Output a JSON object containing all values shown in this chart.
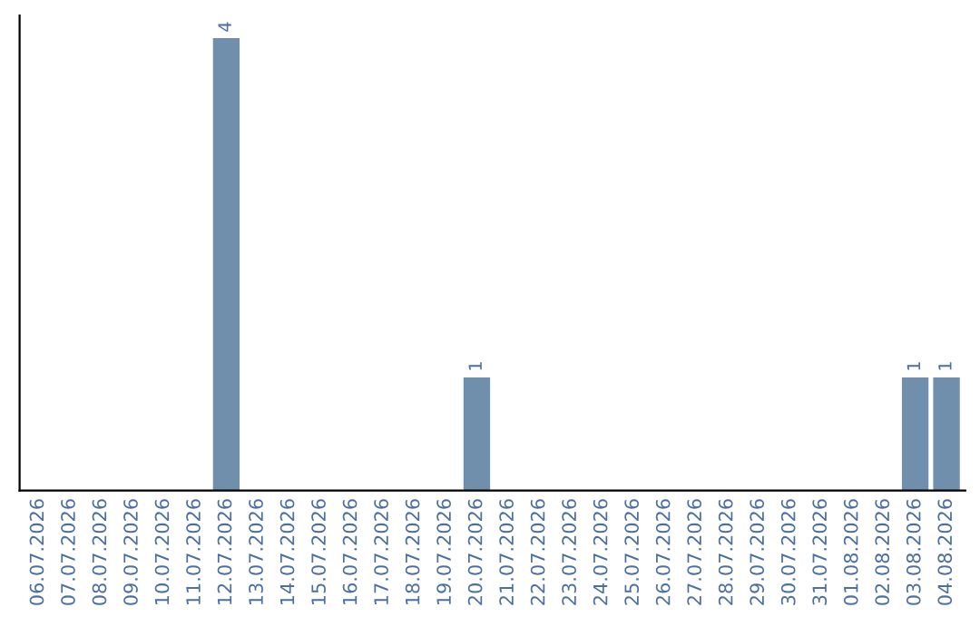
{
  "chart_data": {
    "type": "bar",
    "categories": [
      "06.07.2026",
      "07.07.2026",
      "08.07.2026",
      "09.07.2026",
      "10.07.2026",
      "11.07.2026",
      "12.07.2026",
      "13.07.2026",
      "14.07.2026",
      "15.07.2026",
      "16.07.2026",
      "17.07.2026",
      "18.07.2026",
      "19.07.2026",
      "20.07.2026",
      "21.07.2026",
      "22.07.2026",
      "23.07.2026",
      "24.07.2026",
      "25.07.2026",
      "26.07.2026",
      "27.07.2026",
      "28.07.2026",
      "29.07.2026",
      "30.07.2026",
      "31.07.2026",
      "01.08.2026",
      "02.08.2026",
      "03.08.2026",
      "04.08.2026"
    ],
    "values": [
      0,
      0,
      0,
      0,
      0,
      0,
      4,
      0,
      0,
      0,
      0,
      0,
      0,
      0,
      1,
      0,
      0,
      0,
      0,
      0,
      0,
      0,
      0,
      0,
      0,
      0,
      0,
      0,
      1,
      1
    ],
    "value_labels": [
      null,
      null,
      null,
      null,
      null,
      null,
      "4",
      null,
      null,
      null,
      null,
      null,
      null,
      null,
      "1",
      null,
      null,
      null,
      null,
      null,
      null,
      null,
      null,
      null,
      null,
      null,
      null,
      null,
      "1",
      "1"
    ],
    "color": "#6f8fad",
    "grid": false,
    "legend": false
  }
}
